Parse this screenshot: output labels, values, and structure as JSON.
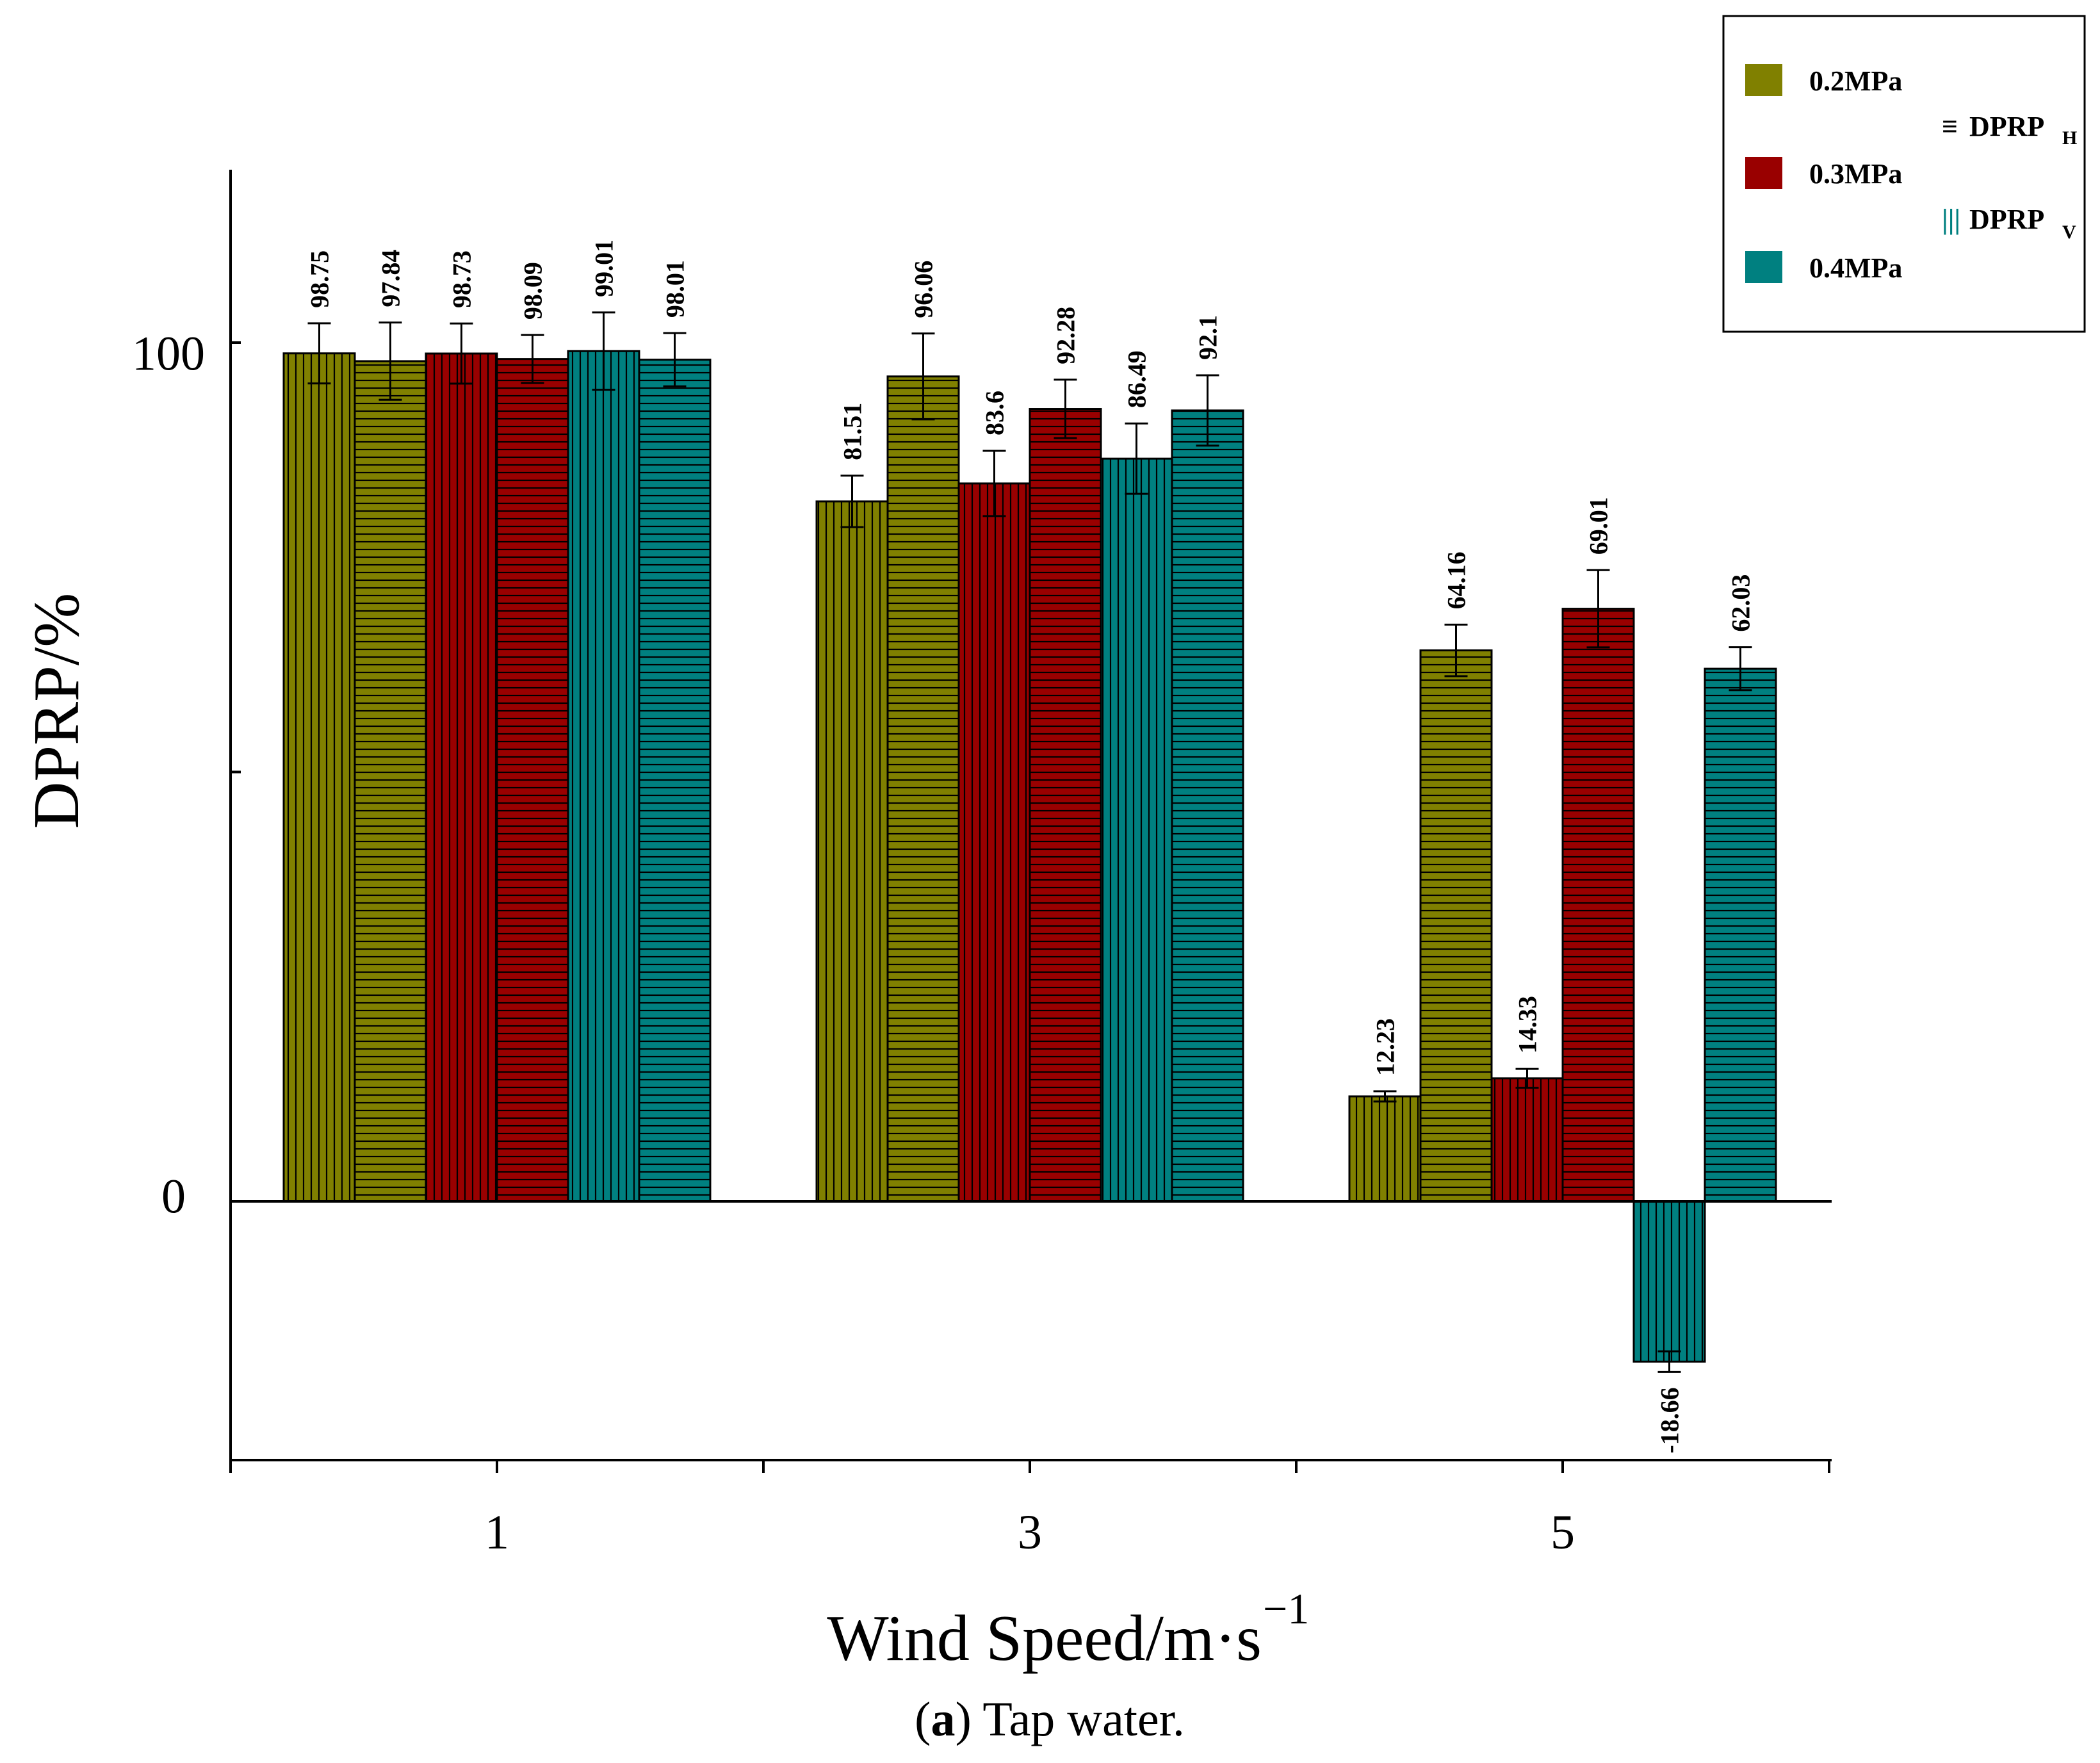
{
  "chart_data": {
    "type": "bar",
    "title": "",
    "xlabel": "Wind Speed/m·s",
    "xlabel_exponent": "−1",
    "ylabel": "DPRP/%",
    "categories": [
      "1",
      "3",
      "5"
    ],
    "ylim": [
      -30,
      120
    ],
    "yticks": [
      0,
      100
    ],
    "grid": false,
    "legend_position": "top-right",
    "bar_order": [
      {
        "series": "0.2MPa",
        "pattern": "V"
      },
      {
        "series": "0.2MPa",
        "pattern": "H"
      },
      {
        "series": "0.3MPa",
        "pattern": "V"
      },
      {
        "series": "0.3MPa",
        "pattern": "H"
      },
      {
        "series": "0.4MPa",
        "pattern": "V"
      },
      {
        "series": "0.4MPa",
        "pattern": "H"
      }
    ],
    "values": [
      [
        98.75,
        97.84,
        98.73,
        98.09,
        99.01,
        98.01
      ],
      [
        81.51,
        96.06,
        83.6,
        92.28,
        86.49,
        92.1
      ],
      [
        12.23,
        64.16,
        14.33,
        69.01,
        -18.66,
        62.03
      ]
    ],
    "labels": [
      [
        "98.75",
        "97.84",
        "98.73",
        "98.09",
        "99.01",
        "98.01"
      ],
      [
        "81.51",
        "96.06",
        "83.6",
        "92.28",
        "86.49",
        "92.1"
      ],
      [
        "12.23",
        "64.16",
        "14.33",
        "69.01",
        "-18.66",
        "62.03"
      ]
    ],
    "errors": [
      [
        3.5,
        4.5,
        3.5,
        2.8,
        4.5,
        3.1
      ],
      [
        3.0,
        5.0,
        3.8,
        3.4,
        4.1,
        4.1
      ],
      [
        0.6,
        3.0,
        1.1,
        4.5,
        1.2,
        2.5
      ]
    ],
    "series_colors": {
      "0.2MPa": "#808000",
      "0.3MPa": "#990000",
      "0.4MPa": "#008080"
    },
    "legend": {
      "items": [
        {
          "label": "0.2MPa",
          "color": "#808000"
        },
        {
          "label": "0.3MPa",
          "color": "#990000"
        },
        {
          "label": "0.4MPa",
          "color": "#008080"
        }
      ],
      "patterns": [
        {
          "symbol": "≡",
          "label": "DPRP",
          "sub": "H"
        },
        {
          "symbol": "|||",
          "label": "DPRP",
          "sub": "V"
        }
      ]
    }
  },
  "caption": {
    "letter": "a",
    "text": " Tap water."
  }
}
